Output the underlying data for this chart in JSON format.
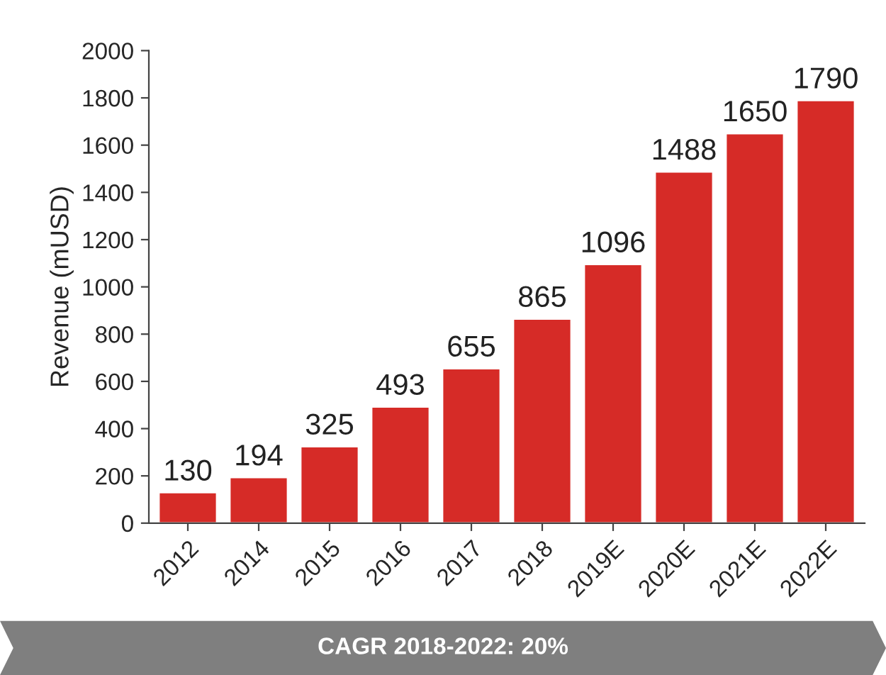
{
  "chart_data": {
    "type": "bar",
    "ylabel": "Revenue (mUSD)",
    "categories": [
      "2012",
      "2014",
      "2015",
      "2016",
      "2017",
      "2018",
      "2019E",
      "2020E",
      "2021E",
      "2022E"
    ],
    "values": [
      130,
      194,
      325,
      493,
      655,
      865,
      1096,
      1488,
      1650,
      1790
    ],
    "color": "#d62b27",
    "ylim": [
      0,
      2000
    ],
    "yticks": [
      0,
      200,
      400,
      600,
      800,
      1000,
      1200,
      1400,
      1600,
      1800,
      2000
    ],
    "grid": false,
    "data_labels": true,
    "legend": false,
    "annotations": [
      "CAGR 2018-2022: 20%"
    ]
  }
}
